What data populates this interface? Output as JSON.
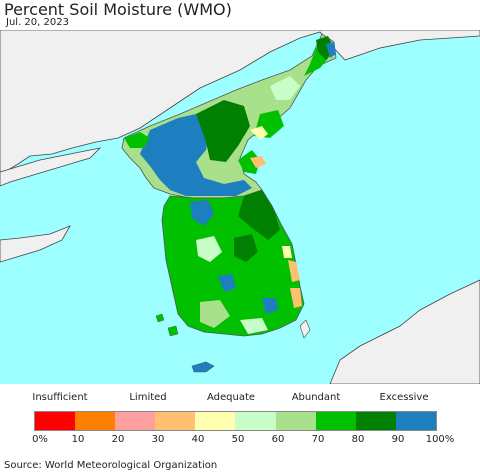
{
  "title": "Percent Soil Moisture (WMO)",
  "date": "Jul. 20, 2023",
  "legend": {
    "categories": [
      "Insufficient",
      "Limited",
      "Adequate",
      "Abundant",
      "Excessive"
    ],
    "ticks": [
      "0%",
      "10",
      "20",
      "30",
      "40",
      "50",
      "60",
      "70",
      "80",
      "90",
      "100%"
    ],
    "colors": [
      "#ff0000",
      "#ff8000",
      "#ffa0a0",
      "#ffc070",
      "#ffffb0",
      "#c8ffc8",
      "#a8e08c",
      "#00c000",
      "#008000",
      "#1e7fc0"
    ]
  },
  "map": {
    "ocean_color": "#9dffff",
    "land_outside_color": "#f0f0f0"
  },
  "source": "Source: World Meteorological Organization"
}
